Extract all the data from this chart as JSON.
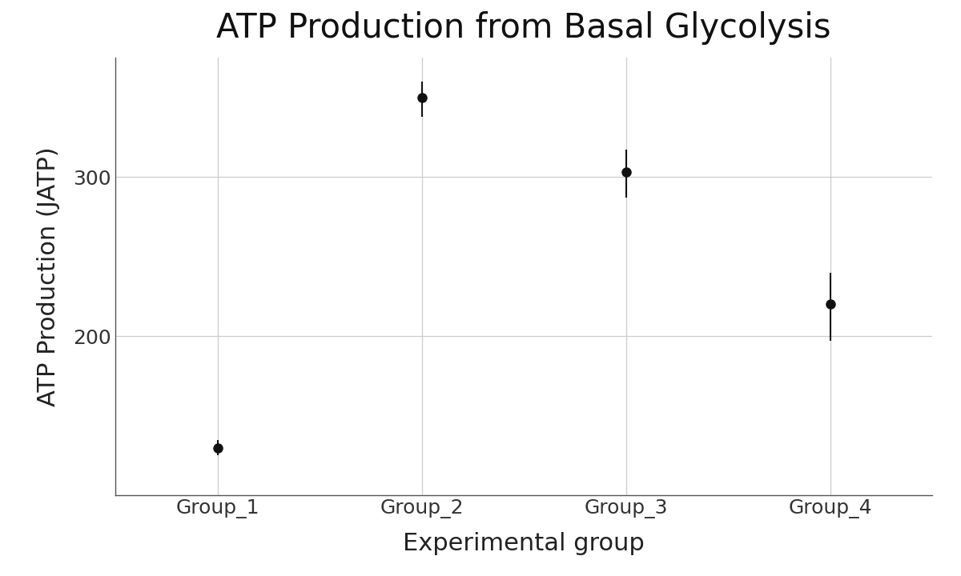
{
  "title": "ATP Production from Basal Glycolysis",
  "xlabel": "Experimental group",
  "ylabel": "ATP Production (JATP)",
  "categories": [
    "Group_1",
    "Group_2",
    "Group_3",
    "Group_4"
  ],
  "means": [
    130,
    350,
    303,
    220
  ],
  "yerr_lower": [
    5,
    12,
    16,
    23
  ],
  "yerr_upper": [
    5,
    10,
    14,
    20
  ],
  "ylim": [
    100,
    375
  ],
  "yticks": [
    200,
    300
  ],
  "point_color": "#111111",
  "marker_size": 8,
  "capsize": 0,
  "bg_color": "#ffffff",
  "panel_bg": "#ffffff",
  "grid_color": "#cccccc",
  "spine_color": "#555555",
  "title_fontsize": 30,
  "label_fontsize": 22,
  "tick_fontsize": 18
}
